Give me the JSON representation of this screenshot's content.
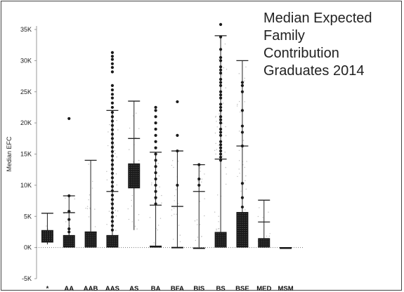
{
  "chart_data": {
    "type": "boxplot",
    "title_lines": [
      "Median Expected",
      "Family",
      "Contribution",
      "Graduates 2014"
    ],
    "ylabel": "Median EFC",
    "ylim": [
      -5000,
      35000
    ],
    "yticks": [
      -5000,
      0,
      5000,
      10000,
      15000,
      20000,
      25000,
      30000,
      35000
    ],
    "ytick_labels": [
      "-5K",
      "0K",
      "5K",
      "10K",
      "15K",
      "20K",
      "25K",
      "30K",
      "35K"
    ],
    "categories": [
      "*",
      "AA",
      "AAB",
      "AAS",
      "AS",
      "BA",
      "BFA",
      "BIS",
      "BS",
      "BSE",
      "MED",
      "MSM"
    ],
    "boxes": [
      {
        "category": "*",
        "q1": 800,
        "q3": 2800,
        "lower": 500,
        "upper": 5500,
        "mid": 2000
      },
      {
        "category": "AA",
        "q1": 0,
        "q3": 2000,
        "lower": 0,
        "upper": 8300,
        "mid": 5600
      },
      {
        "category": "AAB",
        "q1": 0,
        "q3": 2500,
        "lower": 0,
        "upper": 14000,
        "mid": 2500
      },
      {
        "category": "AAS",
        "q1": 0,
        "q3": 2000,
        "lower": 0,
        "upper": 22000,
        "mid": 9000
      },
      {
        "category": "AS",
        "q1": 9500,
        "q3": 13500,
        "lower": 2800,
        "upper": 23500,
        "mid": 17500
      },
      {
        "category": "BA",
        "q1": 0,
        "q3": 300,
        "lower": 0,
        "upper": 15300,
        "mid": 6800
      },
      {
        "category": "BFA",
        "q1": 0,
        "q3": 100,
        "lower": 0,
        "upper": 15500,
        "mid": 6600
      },
      {
        "category": "BIS",
        "q1": 0,
        "q3": 0,
        "lower": 0,
        "upper": 13300,
        "mid": 9000
      },
      {
        "category": "BS",
        "q1": 0,
        "q3": 2500,
        "lower": 0,
        "upper": 34000,
        "mid": 14200
      },
      {
        "category": "BSE",
        "q1": 0,
        "q3": 5700,
        "lower": 0,
        "upper": 30000,
        "mid": 16300
      },
      {
        "category": "MED",
        "q1": 0,
        "q3": 1500,
        "lower": 0,
        "upper": 7600,
        "mid": 4100
      },
      {
        "category": "MSM",
        "q1": 0,
        "q3": 0,
        "lower": 0,
        "upper": 0,
        "mid": 0
      }
    ],
    "outliers": [
      {
        "category": "AA",
        "values": [
          20700,
          8300,
          5800,
          4500,
          3000,
          2500
        ]
      },
      {
        "category": "AAS",
        "values": [
          31300,
          30700,
          30200,
          29500,
          28900,
          28200,
          26000,
          25300,
          24600,
          24000,
          23200,
          22500,
          21700,
          21000,
          20300,
          19600,
          18900,
          18200,
          17500,
          16800,
          16100,
          15400,
          14700,
          14000,
          13300,
          12600,
          11900,
          11200,
          10500,
          9800,
          9100,
          8400,
          7700,
          7000,
          6300,
          5600,
          4900,
          4200,
          3500,
          2800
        ]
      },
      {
        "category": "BA",
        "values": [
          22500,
          22000,
          21000,
          20000,
          19000,
          18000,
          17000,
          16000,
          15000,
          14000,
          13000,
          12000,
          11000,
          10000,
          9000,
          8000,
          7000
        ]
      },
      {
        "category": "BFA",
        "values": [
          23400,
          18000,
          15500,
          10000
        ]
      },
      {
        "category": "BIS",
        "values": [
          13300,
          11000,
          10000
        ]
      },
      {
        "category": "BS",
        "values": [
          35800,
          33800,
          31800,
          30500,
          30000,
          29000,
          28500,
          28000,
          27000,
          26500,
          26000,
          25000,
          24500,
          24000,
          23000,
          22500,
          22000,
          21000,
          20500,
          20000,
          19000,
          18500,
          18000,
          17000,
          16500,
          16000,
          15500,
          15000,
          14500,
          14000
        ]
      },
      {
        "category": "BSE",
        "values": [
          26500,
          26000,
          25000,
          22000,
          19500,
          18500,
          16300,
          10300,
          8000,
          6500
        ]
      }
    ],
    "grid": false,
    "legend": "none"
  }
}
